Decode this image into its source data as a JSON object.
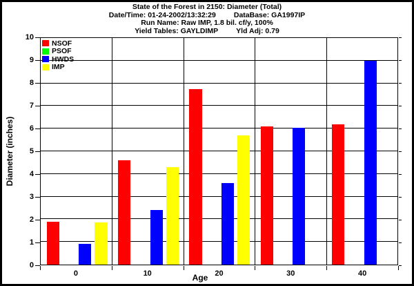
{
  "header": {
    "line1": "State of the Forest in 2150: Diameter (Total)",
    "line2_left": "Date/Time: 01-24-2002/13:32:29",
    "line2_right": "DataBase: GA1997IP",
    "line3": "Run Name: Raw IMP, 1.8 bil. cf/y, 100%",
    "line4_left": "Yield Tables: GAYLDIMP",
    "line4_right": "Yld Adj: 0.79"
  },
  "chart_data": {
    "type": "bar",
    "title": "State of the Forest in 2150: Diameter (Total)",
    "categories": [
      "0",
      "10",
      "20",
      "30",
      "40"
    ],
    "series": [
      {
        "name": "NSOF",
        "color": "#ff0000",
        "values": [
          1.9,
          4.6,
          7.75,
          6.1,
          6.2
        ]
      },
      {
        "name": "PSOF",
        "color": "#00ff00",
        "values": [
          0,
          0,
          0,
          0,
          0
        ]
      },
      {
        "name": "HWDS",
        "color": "#0000ff",
        "values": [
          0.9,
          2.4,
          3.6,
          6.05,
          9.0
        ]
      },
      {
        "name": "IMP",
        "color": "#ffff00",
        "values": [
          1.85,
          4.3,
          5.7,
          0,
          0
        ]
      }
    ],
    "xlabel": "Age",
    "ylabel": "Diameter (inches)",
    "ylim": [
      0,
      10
    ],
    "ytick_step": 1,
    "grid": true,
    "legend": [
      "NSOF",
      "PSOF",
      "HWDS",
      "IMP"
    ],
    "legend_position": "top-left-inside",
    "axis_color": "#000000",
    "background_color": "#ffffff"
  }
}
